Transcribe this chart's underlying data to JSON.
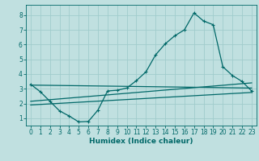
{
  "xlabel": "Humidex (Indice chaleur)",
  "bg_color": "#c0e0e0",
  "grid_color": "#a0cccc",
  "line_color": "#006868",
  "xlim": [
    -0.5,
    23.5
  ],
  "ylim": [
    0.5,
    8.7
  ],
  "xticks": [
    0,
    1,
    2,
    3,
    4,
    5,
    6,
    7,
    8,
    9,
    10,
    11,
    12,
    13,
    14,
    15,
    16,
    17,
    18,
    19,
    20,
    21,
    22,
    23
  ],
  "yticks": [
    1,
    2,
    3,
    4,
    5,
    6,
    7,
    8
  ],
  "main_x": [
    0,
    1,
    2,
    3,
    4,
    5,
    6,
    7,
    8,
    9,
    10,
    11,
    12,
    13,
    14,
    15,
    16,
    17,
    18,
    19,
    20,
    21,
    22,
    23
  ],
  "main_y": [
    3.3,
    2.8,
    2.15,
    1.5,
    1.15,
    0.75,
    0.78,
    1.55,
    2.85,
    2.9,
    3.05,
    3.55,
    4.15,
    5.3,
    6.05,
    6.6,
    7.0,
    8.15,
    7.6,
    7.35,
    4.5,
    3.9,
    3.5,
    2.85
  ],
  "trend1_x": [
    0,
    23
  ],
  "trend1_y": [
    3.25,
    3.05
  ],
  "trend2_x": [
    0,
    23
  ],
  "trend2_y": [
    2.15,
    3.4
  ],
  "trend3_x": [
    0,
    23
  ],
  "trend3_y": [
    1.9,
    2.75
  ]
}
